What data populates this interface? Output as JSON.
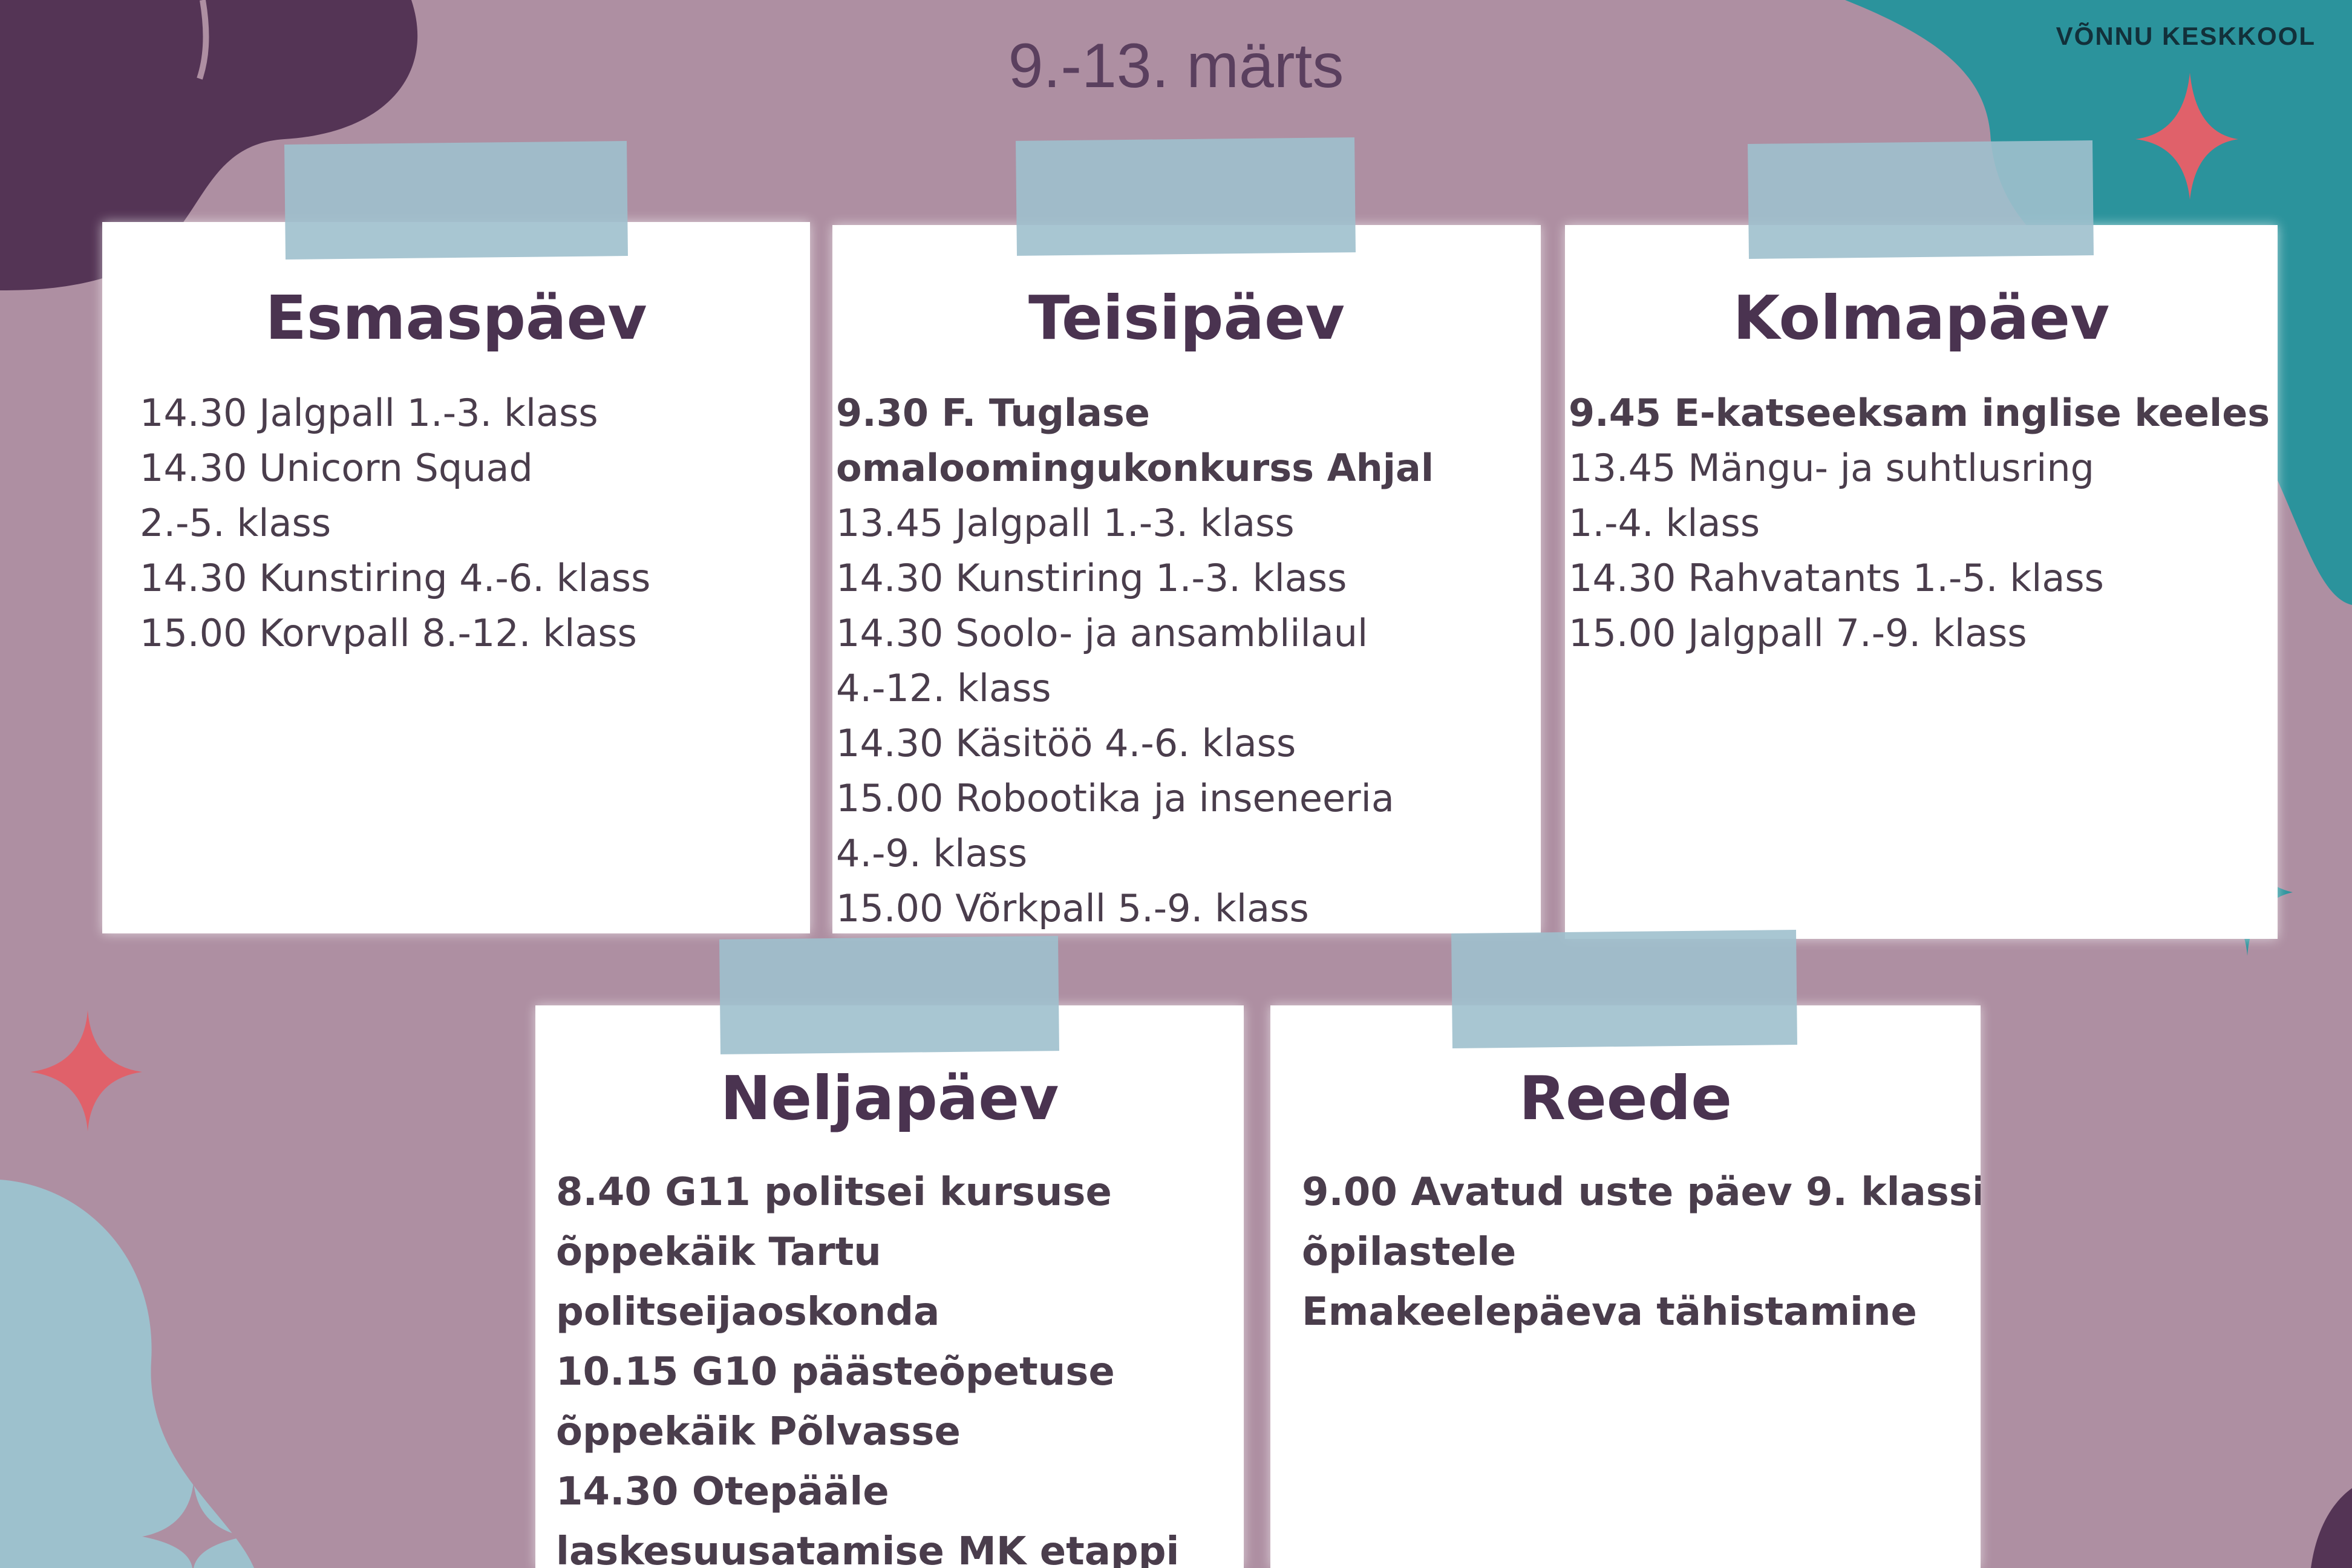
{
  "header": {
    "dates": "9.-13. märts",
    "school": "VÕNNU KESKKOOL"
  },
  "colors": {
    "background": "#ae8fa2",
    "dark_purple": "#543455",
    "teal": "#2b939c",
    "light_blue": "#9dc1cd",
    "star_red": "#e0616a",
    "text": "#4a3350"
  },
  "days": [
    {
      "title": "Esmaspäev",
      "items": [
        {
          "text": "14.30 Jalgpall 1.-3. klass",
          "bold": false
        },
        {
          "text": "14.30 Unicorn Squad",
          "bold": false
        },
        {
          "text": "2.-5. klass",
          "bold": false
        },
        {
          "text": "14.30 Kunstiring 4.-6. klass",
          "bold": false
        },
        {
          "text": "15.00 Korvpall 8.-12. klass",
          "bold": false
        }
      ]
    },
    {
      "title": "Teisipäev",
      "items": [
        {
          "text": "9.30 F. Tuglase",
          "bold": true
        },
        {
          "text": "omaloomingukonkurss Ahjal",
          "bold": true
        },
        {
          "text": "13.45 Jalgpall 1.-3. klass",
          "bold": false
        },
        {
          "text": "14.30 Kunstiring 1.-3. klass",
          "bold": false
        },
        {
          "text": "14.30 Soolo- ja ansamblilaul",
          "bold": false
        },
        {
          "text": "4.-12. klass",
          "bold": false
        },
        {
          "text": "14.30 Käsitöö 4.-6. klass",
          "bold": false
        },
        {
          "text": "15.00 Robootika ja inseneeria",
          "bold": false
        },
        {
          "text": "4.-9. klass",
          "bold": false
        },
        {
          "text": "15.00 Võrkpall 5.-9. klass",
          "bold": false
        }
      ]
    },
    {
      "title": "Kolmapäev",
      "items": [
        {
          "text": "9.45 E-katseeksam inglise keeles",
          "bold": true
        },
        {
          "text": "13.45 Mängu- ja suhtlusring",
          "bold": false
        },
        {
          "text": "1.-4. klass",
          "bold": false
        },
        {
          "text": "14.30 Rahvatants 1.-5. klass",
          "bold": false
        },
        {
          "text": "15.00 Jalgpall 7.-9. klass",
          "bold": false
        }
      ]
    },
    {
      "title": "Neljapäev",
      "items": [
        {
          "text": "8.40 G11 politsei kursuse",
          "bold": true
        },
        {
          "text": "õppekäik Tartu",
          "bold": true
        },
        {
          "text": "politseijaoskonda",
          "bold": true
        },
        {
          "text": "10.15 G10 päästeõpetuse",
          "bold": true
        },
        {
          "text": "õppekäik Põlvasse",
          "bold": true
        },
        {
          "text": "14.30 Otepääle",
          "bold": true
        },
        {
          "text": "laskesuusatamise MK etappi",
          "bold": true
        }
      ]
    },
    {
      "title": "Reede",
      "items": [
        {
          "text": "9.00 Avatud uste päev 9. klassi",
          "bold": true
        },
        {
          "text": "õpilastele",
          "bold": true
        },
        {
          "text": "Emakeelepäeva tähistamine",
          "bold": true
        }
      ]
    }
  ]
}
